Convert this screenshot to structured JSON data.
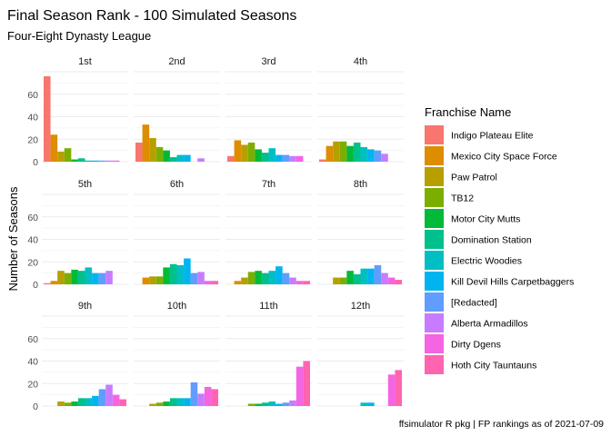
{
  "chart_data": {
    "type": "bar",
    "title": "Final Season Rank - 100 Simulated Seasons",
    "subtitle": "Four-Eight Dynasty League",
    "ylabel": "Number of Seasons",
    "xlabel": "",
    "caption": "ffsimulator R pkg | FP rankings as of 2021-07-09",
    "legend_title": "Franchise Name",
    "legend_position": "right",
    "ylim": [
      0,
      80
    ],
    "yticks": [
      0,
      20,
      40,
      60
    ],
    "grid": true,
    "panels": [
      "1st",
      "2nd",
      "3rd",
      "4th",
      "5th",
      "6th",
      "7th",
      "8th",
      "9th",
      "10th",
      "11th",
      "12th"
    ],
    "series": [
      {
        "name": "Indigo Plateau Elite",
        "color": "#F8766D",
        "values": [
          76,
          17,
          5,
          2,
          1,
          0,
          0,
          0,
          0,
          0,
          0,
          0
        ]
      },
      {
        "name": "Mexico City Space Force",
        "color": "#DE8C00",
        "values": [
          24,
          33,
          19,
          14,
          3,
          6,
          3,
          0,
          0,
          0,
          0,
          0
        ]
      },
      {
        "name": "Paw Patrol",
        "color": "#B79F00",
        "values": [
          9,
          21,
          15,
          18,
          12,
          7,
          6,
          6,
          4,
          2,
          0,
          0
        ]
      },
      {
        "name": "TB12",
        "color": "#7CAE00",
        "values": [
          12,
          13,
          17,
          18,
          10,
          7,
          11,
          6,
          3,
          3,
          2,
          0
        ]
      },
      {
        "name": "Motor City Mutts",
        "color": "#00BA38",
        "values": [
          2,
          10,
          11,
          14,
          13,
          15,
          12,
          12,
          4,
          4,
          2,
          0
        ]
      },
      {
        "name": "Domination Station",
        "color": "#00C08B",
        "values": [
          3,
          4,
          8,
          17,
          12,
          18,
          10,
          9,
          7,
          7,
          3,
          0
        ]
      },
      {
        "name": "Electric Woodies",
        "color": "#00BFC4",
        "values": [
          1,
          6,
          12,
          13,
          15,
          17,
          12,
          14,
          7,
          7,
          4,
          3
        ]
      },
      {
        "name": "Kill Devil Hills Carpetbaggers",
        "color": "#00B4F0",
        "values": [
          1,
          6,
          6,
          11,
          10,
          23,
          16,
          14,
          9,
          7,
          2,
          3
        ]
      },
      {
        "name": "[Redacted]",
        "color": "#619CFF",
        "values": [
          1,
          0,
          6,
          10,
          10,
          10,
          10,
          17,
          15,
          21,
          3,
          0
        ]
      },
      {
        "name": "Alberta Armadillos",
        "color": "#C77CFF",
        "values": [
          1,
          3,
          5,
          7,
          12,
          11,
          6,
          10,
          19,
          11,
          5,
          0
        ]
      },
      {
        "name": "Dirty Dgens",
        "color": "#F564E3",
        "values": [
          1,
          0,
          5,
          0,
          0,
          3,
          3,
          6,
          10,
          17,
          35,
          28
        ]
      },
      {
        "name": "Hoth City Tauntauns",
        "color": "#FF64B0",
        "values": [
          0,
          0,
          0,
          0,
          0,
          3,
          3,
          4,
          6,
          15,
          40,
          32
        ]
      }
    ]
  }
}
